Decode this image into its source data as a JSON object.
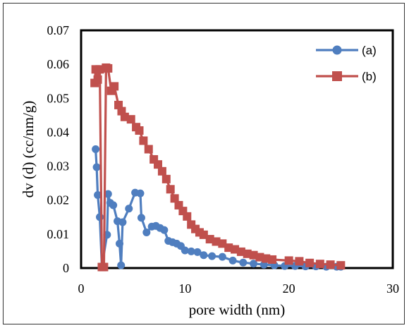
{
  "chart_data": {
    "type": "line",
    "xlabel": "pore width (nm)",
    "ylabel": "dv  (d) (cc/nm/g)",
    "xlim": [
      0,
      30
    ],
    "ylim": [
      0,
      0.07
    ],
    "x_ticks": [
      "0",
      "10",
      "20",
      "30"
    ],
    "y_ticks": [
      "0",
      "0.01",
      "0.02",
      "0.03",
      "0.04",
      "0.05",
      "0.06",
      "0.07"
    ],
    "grid": false,
    "legend_position": "top-right",
    "series": [
      {
        "name": "(a)",
        "color": "#4F7EBF",
        "marker": "circle",
        "points": [
          [
            1.4,
            0.035
          ],
          [
            1.5,
            0.0297
          ],
          [
            1.6,
            0.0215
          ],
          [
            1.8,
            0.015
          ],
          [
            2.0,
            0.0005
          ],
          [
            2.5,
            0.0098
          ],
          [
            2.6,
            0.0218
          ],
          [
            2.8,
            0.0192
          ],
          [
            3.1,
            0.0185
          ],
          [
            3.5,
            0.0138
          ],
          [
            3.7,
            0.0072
          ],
          [
            3.85,
            0.0008
          ],
          [
            4.0,
            0.0135
          ],
          [
            4.6,
            0.0175
          ],
          [
            5.2,
            0.0222
          ],
          [
            5.7,
            0.022
          ],
          [
            5.8,
            0.0148
          ],
          [
            6.3,
            0.0105
          ],
          [
            6.8,
            0.0122
          ],
          [
            7.2,
            0.0124
          ],
          [
            7.6,
            0.0118
          ],
          [
            8.0,
            0.0112
          ],
          [
            8.4,
            0.008
          ],
          [
            8.8,
            0.0076
          ],
          [
            9.2,
            0.0072
          ],
          [
            9.6,
            0.0065
          ],
          [
            10.0,
            0.0052
          ],
          [
            10.6,
            0.0049
          ],
          [
            11.2,
            0.0047
          ],
          [
            11.8,
            0.0038
          ],
          [
            12.6,
            0.0035
          ],
          [
            13.6,
            0.0033
          ],
          [
            14.6,
            0.0022
          ],
          [
            15.6,
            0.0016
          ],
          [
            16.6,
            0.0013
          ],
          [
            17.6,
            0.001
          ],
          [
            18.6,
            0.0008
          ],
          [
            19.6,
            0.0006
          ],
          [
            20.6,
            0.0006
          ],
          [
            21.6,
            0.0005
          ],
          [
            22.6,
            0.0005
          ],
          [
            23.6,
            0.0004
          ],
          [
            24.6,
            0.0004
          ],
          [
            25.0,
            0.0004
          ]
        ]
      },
      {
        "name": "(b)",
        "color": "#C0504D",
        "marker": "square",
        "points": [
          [
            1.3,
            0.0545
          ],
          [
            1.4,
            0.0585
          ],
          [
            1.6,
            0.0555
          ],
          [
            1.8,
            0.0585
          ],
          [
            2.0,
            0.0003
          ],
          [
            2.2,
            0.0003
          ],
          [
            2.4,
            0.059
          ],
          [
            2.6,
            0.0588
          ],
          [
            2.9,
            0.0522
          ],
          [
            3.2,
            0.0535
          ],
          [
            3.6,
            0.048
          ],
          [
            3.9,
            0.0462
          ],
          [
            4.2,
            0.0445
          ],
          [
            4.8,
            0.0438
          ],
          [
            5.3,
            0.0415
          ],
          [
            5.6,
            0.0405
          ],
          [
            6.0,
            0.0375
          ],
          [
            6.5,
            0.035
          ],
          [
            7.0,
            0.032
          ],
          [
            7.4,
            0.0305
          ],
          [
            7.8,
            0.0285
          ],
          [
            8.2,
            0.0262
          ],
          [
            8.6,
            0.0232
          ],
          [
            9.0,
            0.0205
          ],
          [
            9.4,
            0.0185
          ],
          [
            9.8,
            0.0168
          ],
          [
            10.2,
            0.0152
          ],
          [
            10.6,
            0.0128
          ],
          [
            11.0,
            0.0115
          ],
          [
            11.4,
            0.0105
          ],
          [
            11.8,
            0.0098
          ],
          [
            12.4,
            0.0085
          ],
          [
            13.0,
            0.0078
          ],
          [
            13.6,
            0.0072
          ],
          [
            14.2,
            0.006
          ],
          [
            14.8,
            0.0055
          ],
          [
            15.4,
            0.0048
          ],
          [
            16.0,
            0.0042
          ],
          [
            16.6,
            0.0038
          ],
          [
            17.2,
            0.0032
          ],
          [
            17.8,
            0.0028
          ],
          [
            18.4,
            0.0025
          ],
          [
            20.0,
            0.0022
          ],
          [
            21.0,
            0.002
          ],
          [
            22.0,
            0.0015
          ],
          [
            23.0,
            0.0012
          ],
          [
            24.0,
            0.001
          ],
          [
            25.0,
            0.0008
          ]
        ]
      }
    ]
  }
}
